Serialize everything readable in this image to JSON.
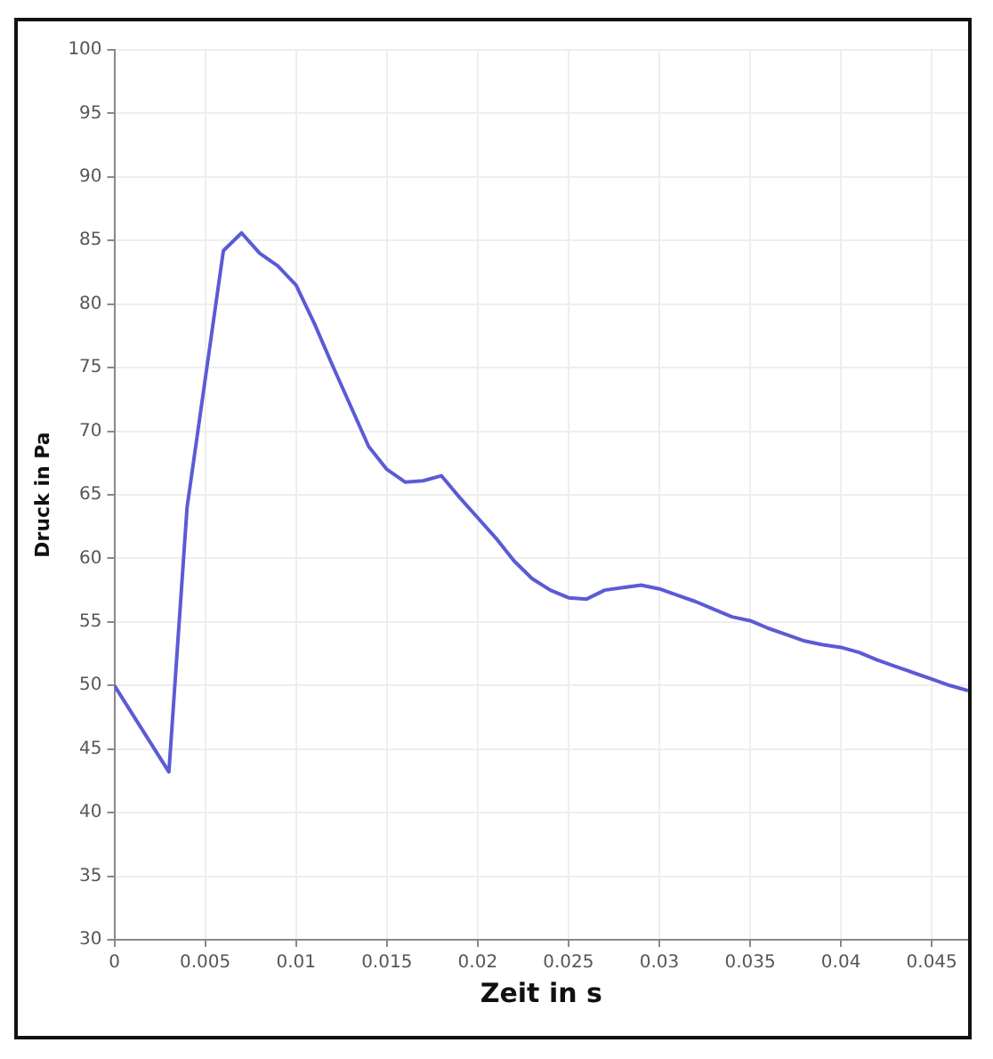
{
  "chart_data": {
    "type": "line",
    "xlabel": "Zeit in s",
    "ylabel": "Druck in Pa",
    "x": [
      0,
      0.003,
      0.004,
      0.006,
      0.007,
      0.008,
      0.009,
      0.01,
      0.011,
      0.012,
      0.013,
      0.014,
      0.015,
      0.016,
      0.017,
      0.018,
      0.019,
      0.02,
      0.021,
      0.022,
      0.023,
      0.024,
      0.025,
      0.026,
      0.027,
      0.028,
      0.029,
      0.03,
      0.031,
      0.032,
      0.033,
      0.034,
      0.035,
      0.036,
      0.037,
      0.038,
      0.039,
      0.04,
      0.041,
      0.042,
      0.043,
      0.044,
      0.045,
      0.046,
      0.047
    ],
    "series": [
      {
        "color": "#5b5bd6",
        "values": [
          50,
          43.2,
          64,
          84.2,
          85.6,
          84,
          83,
          81.5,
          78.5,
          75.2,
          72,
          68.8,
          67,
          66,
          66.1,
          66.5,
          64.8,
          63.2,
          61.6,
          59.8,
          58.4,
          57.5,
          56.9,
          56.8,
          57.5,
          57.7,
          57.9,
          57.6,
          57.1,
          56.6,
          56,
          55.4,
          55.1,
          54.5,
          54,
          53.5,
          53.2,
          53,
          52.6,
          52,
          51.5,
          51,
          50.5,
          50,
          49.6
        ]
      }
    ],
    "xlim": [
      0,
      0.047
    ],
    "xticks": [
      0,
      0.005,
      0.01,
      0.015,
      0.02,
      0.025,
      0.03,
      0.035,
      0.04,
      0.045
    ],
    "ylim": [
      30,
      100
    ],
    "yticks": [
      30,
      35,
      40,
      45,
      50,
      55,
      60,
      65,
      70,
      75,
      80,
      85,
      90,
      95,
      100
    ],
    "grid": true,
    "legend": false,
    "marker": "none",
    "line_style": "solid"
  }
}
